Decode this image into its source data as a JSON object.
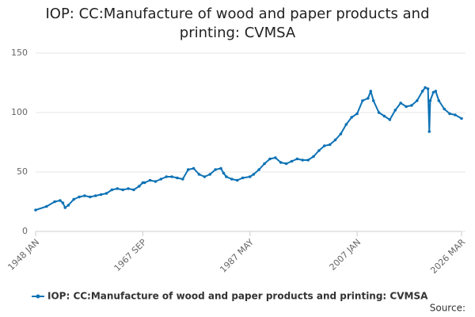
{
  "chart_data": {
    "type": "line",
    "title": "IOP: CC:Manufacture of wood and paper products and printing: CVMSA",
    "x": [
      "1948 JAN",
      "1950 JAN",
      "1951 JUL",
      "1952 JUL",
      "1953 JAN",
      "1953 JUN",
      "1954 JAN",
      "1955 JAN",
      "1956 JAN",
      "1957 JAN",
      "1958 JAN",
      "1959 JAN",
      "1960 JAN",
      "1961 JAN",
      "1962 JAN",
      "1963 JAN",
      "1964 JAN",
      "1965 JAN",
      "1966 JAN",
      "1967 JAN",
      "1967 SEP",
      "1968 JAN",
      "1969 JAN",
      "1970 JAN",
      "1971 JAN",
      "1972 JAN",
      "1973 JAN",
      "1974 JAN",
      "1975 JAN",
      "1976 JAN",
      "1977 JAN",
      "1978 JAN",
      "1979 JAN",
      "1980 JAN",
      "1981 JAN",
      "1982 JAN",
      "1982 JUL",
      "1983 JAN",
      "1984 JAN",
      "1985 JAN",
      "1986 JAN",
      "1987 MAY",
      "1988 JAN",
      "1989 JAN",
      "1990 JAN",
      "1991 JAN",
      "1992 JAN",
      "1993 JAN",
      "1994 JAN",
      "1995 JAN",
      "1996 JAN",
      "1997 JAN",
      "1998 JAN",
      "1999 JAN",
      "2000 JAN",
      "2001 JAN",
      "2002 JAN",
      "2003 JAN",
      "2004 JAN",
      "2005 JAN",
      "2006 JAN",
      "2007 JAN",
      "2008 JAN",
      "2009 JAN",
      "2009 JUL",
      "2010 JAN",
      "2011 JAN",
      "2012 JAN",
      "2013 JAN",
      "2014 JAN",
      "2015 JAN",
      "2016 JAN",
      "2017 JAN",
      "2018 JAN",
      "2019 JAN",
      "2019 JUL",
      "2020 JAN",
      "2020 APR",
      "2020 JUN",
      "2021 JAN",
      "2021 JUN",
      "2022 JAN",
      "2023 JAN",
      "2024 JAN",
      "2025 JAN",
      "2026 MAR"
    ],
    "series": [
      {
        "name": "IOP: CC:Manufacture of wood and paper products and printing: CVMSA",
        "color": "#0e72b5",
        "values": [
          18,
          21,
          25,
          26,
          24,
          20,
          22,
          27,
          29,
          30,
          29,
          30,
          31,
          32,
          35,
          36,
          35,
          36,
          35,
          38,
          41,
          41,
          43,
          42,
          44,
          46,
          46,
          45,
          44,
          52,
          53,
          48,
          46,
          48,
          52,
          53,
          49,
          46,
          44,
          43,
          45,
          46,
          48,
          52,
          57,
          61,
          62,
          58,
          57,
          59,
          61,
          60,
          60,
          63,
          68,
          72,
          73,
          77,
          82,
          90,
          96,
          99,
          110,
          112,
          118,
          110,
          100,
          97,
          94,
          102,
          108,
          105,
          106,
          110,
          118,
          121,
          120,
          84,
          110,
          117,
          118,
          110,
          103,
          99,
          98,
          95
        ]
      }
    ],
    "ylim": [
      0,
      150
    ],
    "yticks": [
      0,
      50,
      100,
      150
    ],
    "xticks": [
      "1948 JAN",
      "1967 SEP",
      "1987 MAY",
      "2007 JAN",
      "2026 MAR"
    ],
    "grid": true,
    "source": "Source:"
  }
}
